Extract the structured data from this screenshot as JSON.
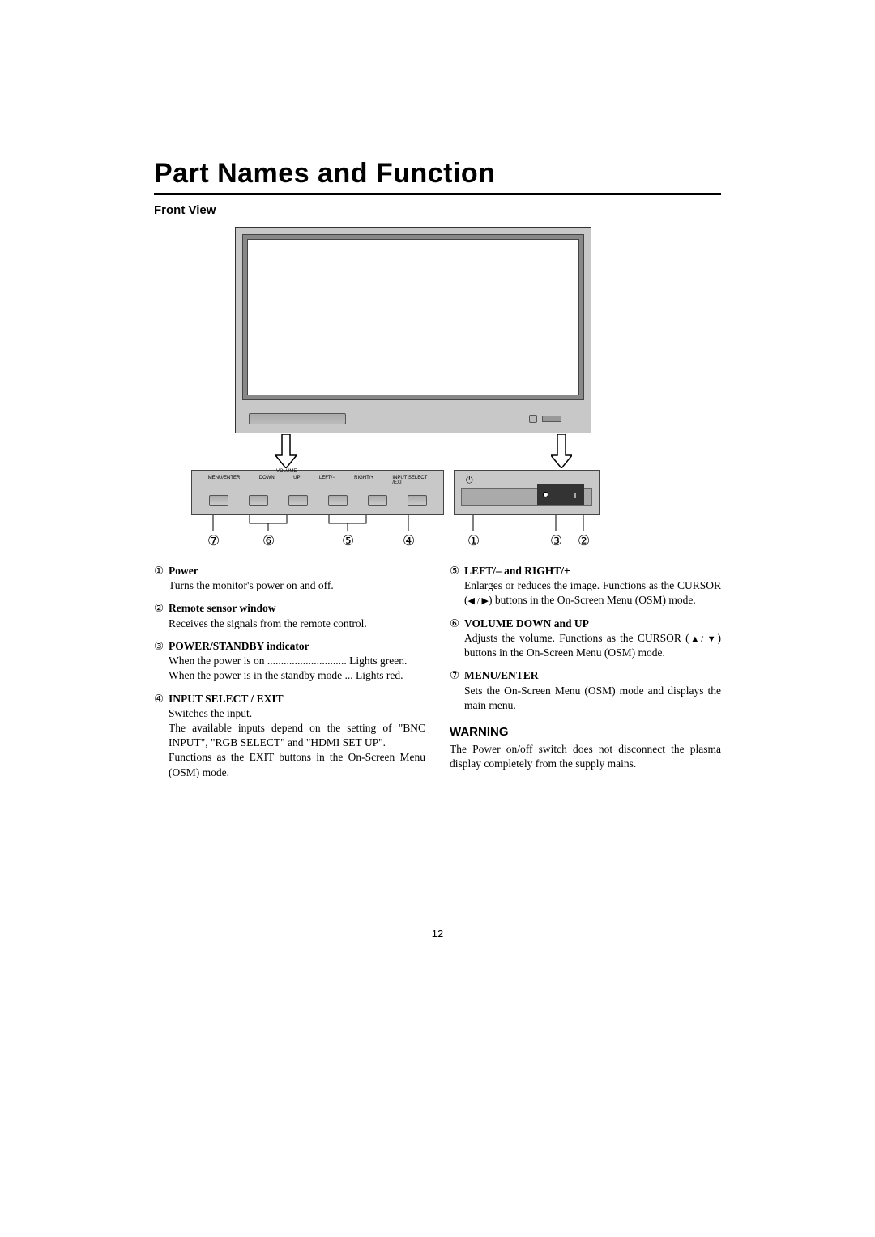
{
  "title": "Part Names and Function",
  "section": "Front View",
  "panel_labels": {
    "volume_header": "VOLUME",
    "menu_enter": "MENU/ENTER",
    "down": "DOWN",
    "up": "UP",
    "left": "LEFT/−",
    "right": "RIGHT/+",
    "input_select": "INPUT SELECT",
    "exit": "/EXIT"
  },
  "power_symbol": "⏻",
  "callouts": {
    "n1": "①",
    "n2": "②",
    "n3": "③",
    "n4": "④",
    "n5": "⑤",
    "n6": "⑥",
    "n7": "⑦"
  },
  "left_items": [
    {
      "num": "①",
      "title": "Power",
      "body": "Turns the monitor's power on and off."
    },
    {
      "num": "②",
      "title": "Remote sensor window",
      "body": "Receives the signals from the remote control."
    },
    {
      "num": "③",
      "title": "POWER/STANDBY indicator",
      "body_lines": [
        "When the power is on ............................. Lights green.",
        "When the power is in the standby mode ... Lights red."
      ]
    },
    {
      "num": "④",
      "title": "INPUT SELECT / EXIT",
      "body": "Switches the input.\nThe available inputs depend on the setting of \"BNC INPUT\", \"RGB SELECT\" and \"HDMI SET UP\".\nFunctions as the EXIT buttons in the On-Screen Menu (OSM) mode."
    }
  ],
  "right_items": [
    {
      "num": "⑤",
      "title": "LEFT/– and RIGHT/+",
      "body_pre": "Enlarges or reduces the image. Functions as the CURSOR (",
      "body_post": ") buttons in the On-Screen Menu (OSM) mode.",
      "icons": "◀ / ▶"
    },
    {
      "num": "⑥",
      "title": "VOLUME DOWN and UP",
      "body_pre": "Adjusts the volume. Functions as the CURSOR (",
      "body_mid": "▲",
      "body_mid2": "/ ▼",
      "body_post": ") buttons in the On-Screen Menu (OSM) mode."
    },
    {
      "num": "⑦",
      "title": "MENU/ENTER",
      "body": "Sets the On-Screen Menu (OSM) mode and displays the main menu."
    }
  ],
  "warning": {
    "heading": "WARNING",
    "text": "The Power on/off switch does not disconnect the plasma display completely from the supply mains."
  },
  "page_number": "12"
}
